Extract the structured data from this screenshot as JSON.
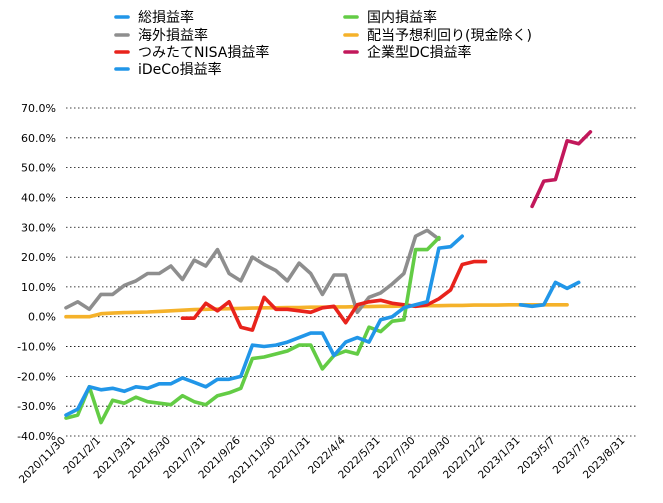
{
  "chart_data": {
    "type": "line",
    "title": "",
    "xlabel": "",
    "ylabel": "",
    "ylim": [
      -0.4,
      0.7
    ],
    "grid": "dotted horizontal",
    "legend_position": "top",
    "x_count": 50,
    "y_ticks": [
      "70.0%",
      "60.0%",
      "50.0%",
      "40.0%",
      "30.0%",
      "20.0%",
      "10.0%",
      "0.0%",
      "-10.0%",
      "-20.0%",
      "-30.0%",
      "-40.0%"
    ],
    "y_tick_values": [
      0.7,
      0.6,
      0.5,
      0.4,
      0.3,
      0.2,
      0.1,
      0.0,
      -0.1,
      -0.2,
      -0.3,
      -0.4
    ],
    "x_ticks": [
      {
        "i": 0,
        "label": "2020/11/30"
      },
      {
        "i": 3,
        "label": "2021/2/1"
      },
      {
        "i": 6,
        "label": "2021/3/31"
      },
      {
        "i": 9,
        "label": "2021/5/30"
      },
      {
        "i": 12,
        "label": "2021/7/31"
      },
      {
        "i": 15,
        "label": "2021/9/26"
      },
      {
        "i": 18,
        "label": "2021/11/30"
      },
      {
        "i": 21,
        "label": "2022/1/31"
      },
      {
        "i": 24,
        "label": "2022/4/4"
      },
      {
        "i": 27,
        "label": "2022/5/31"
      },
      {
        "i": 30,
        "label": "2022/7/30"
      },
      {
        "i": 33,
        "label": "2022/9/30"
      },
      {
        "i": 36,
        "label": "2022/12/2"
      },
      {
        "i": 39,
        "label": "2023/1/31"
      },
      {
        "i": 42,
        "label": "2023/5/7"
      },
      {
        "i": 45,
        "label": "2023/7/3"
      },
      {
        "i": 48,
        "label": "2023/8/31"
      }
    ],
    "series": [
      {
        "name": "総損益率",
        "color": "#2196e8",
        "start": 0,
        "values": [
          -0.33,
          -0.31,
          -0.235,
          -0.245,
          -0.24,
          -0.25,
          -0.235,
          -0.24,
          -0.225,
          -0.225,
          -0.205,
          -0.22,
          -0.235,
          -0.21,
          -0.21,
          -0.2,
          -0.095,
          -0.1,
          -0.095,
          -0.085,
          -0.07,
          -0.055,
          -0.055,
          -0.13,
          -0.085,
          -0.07,
          -0.085,
          -0.01,
          0.0,
          0.03,
          0.04,
          0.05,
          0.23,
          0.235,
          0.27
        ]
      },
      {
        "name": "海外損益率",
        "color": "#8e8e8e",
        "start": 0,
        "values": [
          0.03,
          0.05,
          0.025,
          0.075,
          0.075,
          0.105,
          0.12,
          0.145,
          0.145,
          0.17,
          0.125,
          0.19,
          0.17,
          0.225,
          0.145,
          0.12,
          0.2,
          0.175,
          0.155,
          0.12,
          0.18,
          0.145,
          0.075,
          0.14,
          0.14,
          0.015,
          0.065,
          0.08,
          0.11,
          0.145,
          0.27,
          0.29,
          0.26
        ]
      },
      {
        "name": "つみたてNISA損益率",
        "color": "#e8231c",
        "start": 10,
        "values": [
          -0.005,
          -0.005,
          0.045,
          0.02,
          0.05,
          -0.035,
          -0.045,
          0.065,
          0.025,
          0.025,
          0.02,
          0.015,
          0.03,
          0.035,
          -0.02,
          0.04,
          0.05,
          0.055,
          0.045,
          0.04,
          0.035,
          0.04,
          0.06,
          0.09,
          0.175,
          0.185,
          0.185
        ]
      },
      {
        "name": "iDeCo損益率",
        "color": "#2196e8",
        "start": 39,
        "values": [
          0.04,
          0.035,
          0.04,
          0.115,
          0.095,
          0.115
        ]
      },
      {
        "name": "国内損益率",
        "color": "#63cc45",
        "start": 0,
        "values": [
          -0.34,
          -0.33,
          -0.235,
          -0.355,
          -0.28,
          -0.29,
          -0.27,
          -0.285,
          -0.29,
          -0.295,
          -0.265,
          -0.285,
          -0.295,
          -0.265,
          -0.255,
          -0.24,
          -0.14,
          -0.135,
          -0.125,
          -0.115,
          -0.095,
          -0.095,
          -0.175,
          -0.13,
          -0.115,
          -0.125,
          -0.035,
          -0.05,
          -0.015,
          -0.01,
          0.225,
          0.225,
          0.265
        ]
      },
      {
        "name": "配当予想利回り(現金除く)",
        "color": "#f5b22a",
        "start": 0,
        "values": [
          0.0,
          0.0,
          0.0,
          0.01,
          0.012,
          0.014,
          0.015,
          0.016,
          0.018,
          0.02,
          0.022,
          0.024,
          0.025,
          0.026,
          0.027,
          0.028,
          0.029,
          0.03,
          0.03,
          0.031,
          0.031,
          0.032,
          0.032,
          0.033,
          0.033,
          0.034,
          0.034,
          0.035,
          0.035,
          0.036,
          0.036,
          0.037,
          0.037,
          0.038,
          0.038,
          0.039,
          0.039,
          0.039,
          0.04,
          0.04,
          0.04,
          0.04,
          0.04,
          0.04
        ]
      },
      {
        "name": "企業型DC損益率",
        "color": "#c2185b",
        "start": 40,
        "values": [
          0.37,
          0.455,
          0.46,
          0.59,
          0.58,
          0.62
        ]
      }
    ]
  }
}
